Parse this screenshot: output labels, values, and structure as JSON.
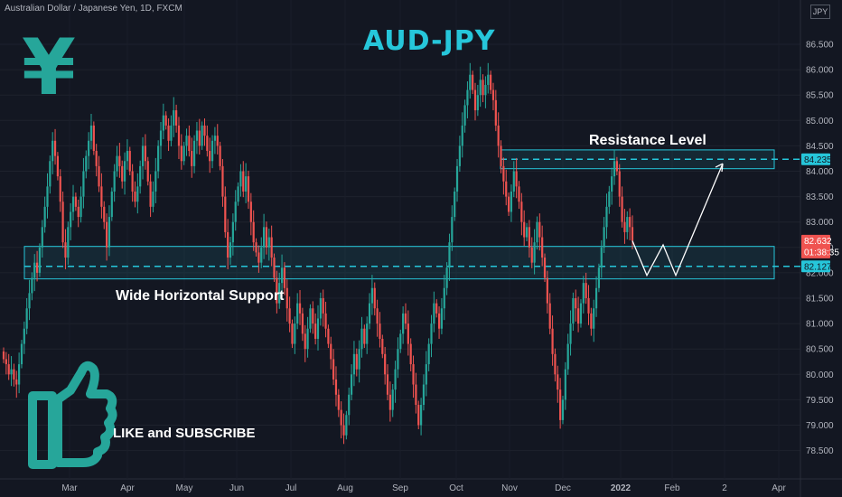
{
  "header": {
    "symbol": "Australian Dollar / Japanese Yen, 1D, FXCM",
    "currency": "JPY"
  },
  "annotations": {
    "title": "AUD-JPY",
    "yen_symbol": "¥",
    "resistance_label": "Resistance Level",
    "support_label": "Wide Horizontal Support",
    "like_label": "LIKE and SUBSCRIBE"
  },
  "price_badges": {
    "resistance": "84.235",
    "current": "82.632",
    "countdown": "01:38:35",
    "support": "82.127"
  },
  "colors": {
    "background": "#131722",
    "up": "#26a69a",
    "down": "#ef5350",
    "zone_border": "#26c6da",
    "title": "#26c6da",
    "thumb": "#26a69a"
  },
  "chart_data": {
    "type": "candlestick",
    "ylim": [
      78.2,
      86.9
    ],
    "y_ticks": [
      "86.500",
      "86.000",
      "85.500",
      "85.000",
      "84.500",
      "84.000",
      "83.500",
      "83.000",
      "82.500",
      "82.000",
      "81.500",
      "81.000",
      "80.500",
      "80.000",
      "79.500",
      "79.000",
      "78.500"
    ],
    "x_ticks": [
      "Mar",
      "Apr",
      "May",
      "Jun",
      "Jul",
      "Aug",
      "Sep",
      "Oct",
      "Nov",
      "Dec",
      "2022",
      "Feb",
      "2",
      "Apr"
    ],
    "resistance_zone": [
      84.05,
      84.42
    ],
    "resistance_level": 84.235,
    "support_zone": [
      81.88,
      82.52
    ],
    "support_level": 82.127,
    "last_price": 82.632,
    "projection_path": [
      [
        82.63,
        "Dec end"
      ],
      [
        82.0,
        "Jan"
      ],
      [
        82.55,
        "Jan"
      ],
      [
        82.0,
        "Jan"
      ],
      [
        84.1,
        "Feb"
      ]
    ],
    "closes": [
      80.3,
      80.2,
      80.0,
      80.1,
      79.9,
      79.8,
      80.2,
      80.6,
      80.9,
      81.3,
      81.6,
      81.9,
      82.2,
      82.0,
      82.5,
      82.9,
      83.3,
      83.7,
      84.2,
      84.6,
      84.3,
      83.9,
      83.4,
      82.6,
      82.3,
      82.9,
      83.2,
      83.5,
      83.3,
      83.1,
      83.5,
      84.0,
      84.3,
      84.6,
      84.9,
      84.4,
      84.1,
      83.7,
      83.3,
      83.0,
      82.5,
      83.1,
      83.6,
      84.0,
      84.3,
      84.1,
      83.8,
      84.2,
      84.4,
      84.0,
      83.6,
      83.4,
      83.7,
      84.1,
      84.5,
      84.2,
      83.8,
      83.3,
      83.6,
      84.0,
      84.5,
      84.8,
      85.1,
      84.9,
      84.6,
      84.9,
      85.2,
      84.9,
      84.5,
      84.2,
      84.5,
      84.7,
      84.4,
      84.1,
      84.6,
      84.8,
      84.5,
      84.9,
      84.7,
      84.4,
      84.2,
      84.6,
      84.7,
      84.5,
      84.1,
      83.5,
      82.8,
      82.3,
      82.6,
      83.0,
      83.4,
      83.7,
      84.0,
      83.6,
      83.9,
      83.4,
      83.0,
      82.6,
      82.4,
      82.2,
      82.5,
      82.9,
      82.5,
      82.7,
      82.3,
      81.9,
      81.4,
      81.8,
      82.1,
      81.7,
      81.3,
      81.0,
      80.6,
      81.0,
      81.4,
      81.2,
      80.8,
      80.5,
      80.9,
      81.3,
      81.0,
      80.7,
      81.1,
      81.5,
      81.2,
      80.9,
      80.6,
      80.3,
      79.9,
      79.6,
      79.3,
      79.0,
      78.8,
      79.2,
      79.6,
      80.0,
      80.4,
      80.1,
      80.5,
      80.9,
      80.6,
      81.0,
      81.4,
      81.7,
      81.3,
      81.0,
      80.7,
      80.4,
      80.0,
      79.6,
      79.3,
      79.7,
      80.1,
      80.5,
      80.8,
      81.2,
      81.0,
      80.6,
      80.2,
      79.8,
      79.4,
      79.0,
      79.4,
      79.8,
      80.2,
      80.6,
      81.0,
      81.4,
      81.2,
      80.9,
      81.3,
      81.7,
      82.1,
      82.6,
      83.1,
      83.6,
      84.1,
      84.5,
      84.9,
      85.3,
      85.6,
      85.9,
      85.6,
      85.2,
      85.5,
      85.8,
      85.5,
      85.7,
      85.9,
      85.6,
      85.4,
      84.9,
      84.5,
      84.1,
      83.8,
      83.5,
      83.2,
      83.6,
      84.0,
      83.7,
      83.4,
      83.0,
      82.7,
      82.9,
      82.5,
      82.2,
      82.6,
      83.0,
      82.7,
      82.3,
      81.9,
      81.4,
      80.9,
      80.4,
      80.0,
      79.7,
      79.1,
      79.5,
      80.1,
      80.6,
      81.0,
      81.5,
      81.3,
      81.0,
      81.4,
      81.8,
      81.5,
      81.2,
      80.9,
      81.3,
      81.7,
      82.1,
      82.5,
      82.9,
      83.3,
      83.6,
      83.9,
      84.2,
      84.0,
      83.5,
      83.0,
      82.8,
      83.1,
      82.9,
      82.632
    ]
  }
}
